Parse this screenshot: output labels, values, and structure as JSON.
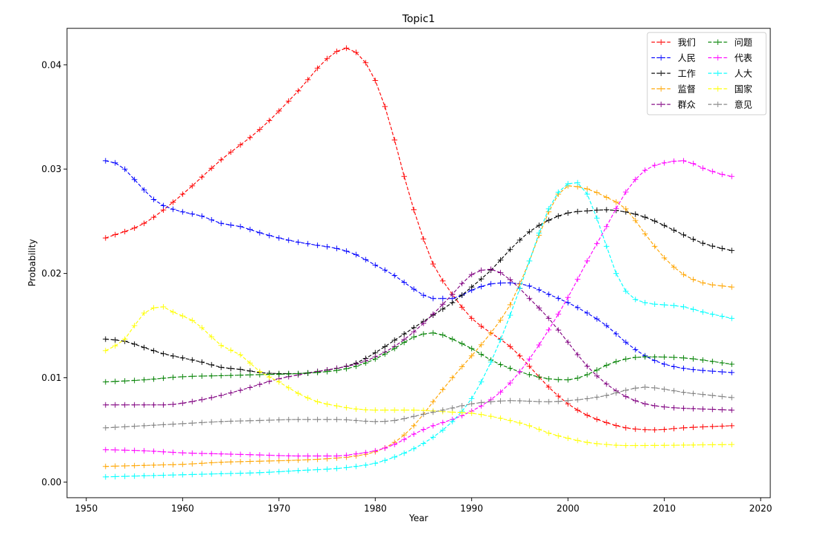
{
  "chart_data": {
    "type": "line",
    "title": "Topic1",
    "xlabel": "Year",
    "ylabel": "Probability",
    "xlim": [
      1948,
      2021
    ],
    "ylim": [
      -0.0015,
      0.0435
    ],
    "xticks": [
      1950,
      1960,
      1970,
      1980,
      1990,
      2000,
      2010,
      2020
    ],
    "yticks": [
      0.0,
      0.01,
      0.02,
      0.03,
      0.04
    ],
    "ytick_labels": [
      "0.00",
      "0.01",
      "0.02",
      "0.03",
      "0.04"
    ],
    "grid": false,
    "legend_position": "top-right",
    "legend_columns": 2,
    "line_style": "dashed",
    "marker": "+",
    "x_start": 1952,
    "x_end": 2017,
    "series": [
      {
        "name": "我们",
        "color": "#ff0000",
        "points": [
          [
            1952,
            0.0234
          ],
          [
            1956,
            0.0248
          ],
          [
            1960,
            0.0276
          ],
          [
            1964,
            0.0309
          ],
          [
            1968,
            0.0338
          ],
          [
            1972,
            0.0375
          ],
          [
            1975,
            0.0406
          ],
          [
            1977,
            0.0416
          ],
          [
            1979,
            0.0402
          ],
          [
            1980,
            0.0385
          ],
          [
            1981,
            0.036
          ],
          [
            1982,
            0.0328
          ],
          [
            1983,
            0.0293
          ],
          [
            1984,
            0.0261
          ],
          [
            1985,
            0.0233
          ],
          [
            1986,
            0.0209
          ],
          [
            1988,
            0.018
          ],
          [
            1990,
            0.0157
          ],
          [
            1992,
            0.0143
          ],
          [
            1994,
            0.013
          ],
          [
            1996,
            0.0111
          ],
          [
            1998,
            0.0091
          ],
          [
            2000,
            0.0075
          ],
          [
            2002,
            0.0064
          ],
          [
            2004,
            0.0057
          ],
          [
            2006,
            0.0052
          ],
          [
            2009,
            0.005
          ],
          [
            2012,
            0.0052
          ],
          [
            2017,
            0.0054
          ]
        ]
      },
      {
        "name": "人民",
        "color": "#0000ff",
        "points": [
          [
            1952,
            0.0308
          ],
          [
            1953,
            0.0306
          ],
          [
            1954,
            0.03
          ],
          [
            1955,
            0.029
          ],
          [
            1956,
            0.028
          ],
          [
            1957,
            0.0271
          ],
          [
            1958,
            0.0265
          ],
          [
            1960,
            0.0259
          ],
          [
            1962,
            0.0255
          ],
          [
            1964,
            0.0248
          ],
          [
            1966,
            0.0245
          ],
          [
            1968,
            0.0239
          ],
          [
            1970,
            0.0234
          ],
          [
            1972,
            0.023
          ],
          [
            1974,
            0.0227
          ],
          [
            1976,
            0.0224
          ],
          [
            1978,
            0.0218
          ],
          [
            1980,
            0.0208
          ],
          [
            1982,
            0.0198
          ],
          [
            1984,
            0.0185
          ],
          [
            1986,
            0.0176
          ],
          [
            1988,
            0.0176
          ],
          [
            1990,
            0.0184
          ],
          [
            1992,
            0.019
          ],
          [
            1994,
            0.0191
          ],
          [
            1996,
            0.0188
          ],
          [
            1998,
            0.018
          ],
          [
            2000,
            0.0172
          ],
          [
            2002,
            0.0162
          ],
          [
            2004,
            0.015
          ],
          [
            2006,
            0.0134
          ],
          [
            2008,
            0.0121
          ],
          [
            2010,
            0.0113
          ],
          [
            2012,
            0.0109
          ],
          [
            2014,
            0.0107
          ],
          [
            2017,
            0.0105
          ]
        ]
      },
      {
        "name": "工作",
        "color": "#000000",
        "points": [
          [
            1952,
            0.0137
          ],
          [
            1954,
            0.0135
          ],
          [
            1956,
            0.0129
          ],
          [
            1958,
            0.0123
          ],
          [
            1960,
            0.0119
          ],
          [
            1962,
            0.0115
          ],
          [
            1964,
            0.011
          ],
          [
            1966,
            0.0108
          ],
          [
            1968,
            0.0105
          ],
          [
            1970,
            0.0104
          ],
          [
            1972,
            0.0104
          ],
          [
            1974,
            0.0106
          ],
          [
            1976,
            0.0109
          ],
          [
            1978,
            0.0114
          ],
          [
            1980,
            0.0124
          ],
          [
            1982,
            0.0136
          ],
          [
            1984,
            0.0148
          ],
          [
            1986,
            0.016
          ],
          [
            1988,
            0.0172
          ],
          [
            1990,
            0.0187
          ],
          [
            1992,
            0.0203
          ],
          [
            1994,
            0.0223
          ],
          [
            1996,
            0.024
          ],
          [
            1998,
            0.0251
          ],
          [
            2000,
            0.0258
          ],
          [
            2002,
            0.026
          ],
          [
            2004,
            0.0261
          ],
          [
            2006,
            0.0259
          ],
          [
            2008,
            0.0254
          ],
          [
            2010,
            0.0246
          ],
          [
            2012,
            0.0237
          ],
          [
            2014,
            0.0229
          ],
          [
            2016,
            0.0224
          ],
          [
            2017,
            0.0222
          ]
        ]
      },
      {
        "name": "监督",
        "color": "#ffa500",
        "points": [
          [
            1952,
            0.0015
          ],
          [
            1956,
            0.0016
          ],
          [
            1960,
            0.0017
          ],
          [
            1964,
            0.0019
          ],
          [
            1968,
            0.002
          ],
          [
            1972,
            0.0021
          ],
          [
            1976,
            0.0023
          ],
          [
            1978,
            0.0025
          ],
          [
            1980,
            0.0029
          ],
          [
            1982,
            0.0038
          ],
          [
            1984,
            0.0054
          ],
          [
            1986,
            0.0077
          ],
          [
            1988,
            0.01
          ],
          [
            1990,
            0.0121
          ],
          [
            1992,
            0.0143
          ],
          [
            1994,
            0.017
          ],
          [
            1996,
            0.0212
          ],
          [
            1998,
            0.0259
          ],
          [
            2000,
            0.0284
          ],
          [
            2002,
            0.0281
          ],
          [
            2004,
            0.0273
          ],
          [
            2006,
            0.0262
          ],
          [
            2008,
            0.0238
          ],
          [
            2010,
            0.0215
          ],
          [
            2012,
            0.0199
          ],
          [
            2014,
            0.0191
          ],
          [
            2017,
            0.0187
          ]
        ]
      },
      {
        "name": "群众",
        "color": "#800080",
        "points": [
          [
            1952,
            0.0074
          ],
          [
            1956,
            0.0074
          ],
          [
            1958,
            0.0074
          ],
          [
            1962,
            0.0079
          ],
          [
            1966,
            0.0088
          ],
          [
            1970,
            0.0099
          ],
          [
            1974,
            0.0106
          ],
          [
            1978,
            0.0113
          ],
          [
            1980,
            0.012
          ],
          [
            1982,
            0.013
          ],
          [
            1984,
            0.0144
          ],
          [
            1986,
            0.0161
          ],
          [
            1988,
            0.018
          ],
          [
            1990,
            0.0199
          ],
          [
            1992,
            0.0204
          ],
          [
            1994,
            0.0194
          ],
          [
            1996,
            0.0176
          ],
          [
            1998,
            0.0157
          ],
          [
            2000,
            0.0134
          ],
          [
            2002,
            0.0111
          ],
          [
            2004,
            0.0094
          ],
          [
            2006,
            0.0082
          ],
          [
            2008,
            0.0075
          ],
          [
            2010,
            0.0072
          ],
          [
            2014,
            0.007
          ],
          [
            2017,
            0.0069
          ]
        ]
      },
      {
        "name": "问题",
        "color": "#008000",
        "points": [
          [
            1952,
            0.0096
          ],
          [
            1956,
            0.0098
          ],
          [
            1960,
            0.0101
          ],
          [
            1964,
            0.0102
          ],
          [
            1968,
            0.0103
          ],
          [
            1972,
            0.0104
          ],
          [
            1976,
            0.0107
          ],
          [
            1978,
            0.0111
          ],
          [
            1980,
            0.0118
          ],
          [
            1982,
            0.0128
          ],
          [
            1984,
            0.0139
          ],
          [
            1986,
            0.0143
          ],
          [
            1987,
            0.0141
          ],
          [
            1988,
            0.0137
          ],
          [
            1990,
            0.0128
          ],
          [
            1992,
            0.0117
          ],
          [
            1994,
            0.0109
          ],
          [
            1996,
            0.0103
          ],
          [
            1998,
            0.0099
          ],
          [
            2000,
            0.0098
          ],
          [
            2002,
            0.0103
          ],
          [
            2004,
            0.0112
          ],
          [
            2006,
            0.0118
          ],
          [
            2008,
            0.012
          ],
          [
            2012,
            0.0119
          ],
          [
            2017,
            0.0113
          ]
        ]
      },
      {
        "name": "代表",
        "color": "#ff00ff",
        "points": [
          [
            1952,
            0.0031
          ],
          [
            1956,
            0.003
          ],
          [
            1960,
            0.0028
          ],
          [
            1964,
            0.0027
          ],
          [
            1968,
            0.0026
          ],
          [
            1972,
            0.0025
          ],
          [
            1976,
            0.0025
          ],
          [
            1978,
            0.0027
          ],
          [
            1980,
            0.003
          ],
          [
            1982,
            0.0036
          ],
          [
            1984,
            0.0046
          ],
          [
            1986,
            0.0054
          ],
          [
            1988,
            0.006
          ],
          [
            1990,
            0.0068
          ],
          [
            1992,
            0.0079
          ],
          [
            1994,
            0.0095
          ],
          [
            1996,
            0.0118
          ],
          [
            1998,
            0.0146
          ],
          [
            2000,
            0.0177
          ],
          [
            2002,
            0.0212
          ],
          [
            2004,
            0.0245
          ],
          [
            2006,
            0.0278
          ],
          [
            2008,
            0.0299
          ],
          [
            2010,
            0.0306
          ],
          [
            2012,
            0.0308
          ],
          [
            2014,
            0.0301
          ],
          [
            2016,
            0.0295
          ],
          [
            2017,
            0.0293
          ]
        ]
      },
      {
        "name": "人大",
        "color": "#00ffff",
        "points": [
          [
            1952,
            0.0005
          ],
          [
            1956,
            0.0006
          ],
          [
            1960,
            0.0007
          ],
          [
            1964,
            0.0008
          ],
          [
            1968,
            0.0009
          ],
          [
            1972,
            0.0011
          ],
          [
            1976,
            0.0013
          ],
          [
            1978,
            0.0015
          ],
          [
            1980,
            0.0018
          ],
          [
            1982,
            0.0024
          ],
          [
            1984,
            0.0032
          ],
          [
            1986,
            0.0043
          ],
          [
            1988,
            0.0058
          ],
          [
            1990,
            0.008
          ],
          [
            1992,
            0.0115
          ],
          [
            1994,
            0.016
          ],
          [
            1996,
            0.0212
          ],
          [
            1998,
            0.0262
          ],
          [
            2000,
            0.0286
          ],
          [
            2001,
            0.0287
          ],
          [
            2002,
            0.0276
          ],
          [
            2003,
            0.0253
          ],
          [
            2004,
            0.0226
          ],
          [
            2005,
            0.02
          ],
          [
            2006,
            0.0183
          ],
          [
            2007,
            0.0175
          ],
          [
            2008,
            0.0172
          ],
          [
            2012,
            0.0168
          ],
          [
            2014,
            0.0163
          ],
          [
            2017,
            0.0157
          ]
        ]
      },
      {
        "name": "国家",
        "color": "#ffff00",
        "points": [
          [
            1952,
            0.0126
          ],
          [
            1954,
            0.0137
          ],
          [
            1955,
            0.015
          ],
          [
            1956,
            0.0162
          ],
          [
            1957,
            0.0167
          ],
          [
            1958,
            0.0168
          ],
          [
            1959,
            0.0163
          ],
          [
            1961,
            0.0155
          ],
          [
            1962,
            0.0148
          ],
          [
            1964,
            0.0131
          ],
          [
            1966,
            0.0122
          ],
          [
            1968,
            0.0106
          ],
          [
            1970,
            0.0096
          ],
          [
            1972,
            0.0085
          ],
          [
            1974,
            0.0077
          ],
          [
            1976,
            0.0073
          ],
          [
            1978,
            0.007
          ],
          [
            1980,
            0.0069
          ],
          [
            1984,
            0.0069
          ],
          [
            1988,
            0.0067
          ],
          [
            1990,
            0.0066
          ],
          [
            1992,
            0.0063
          ],
          [
            1994,
            0.0059
          ],
          [
            1996,
            0.0054
          ],
          [
            1998,
            0.0047
          ],
          [
            2000,
            0.0042
          ],
          [
            2002,
            0.0038
          ],
          [
            2004,
            0.0036
          ],
          [
            2006,
            0.0035
          ],
          [
            2017,
            0.0036
          ]
        ]
      },
      {
        "name": "意见",
        "color": "#808080",
        "points": [
          [
            1952,
            0.0052
          ],
          [
            1956,
            0.0054
          ],
          [
            1960,
            0.0056
          ],
          [
            1964,
            0.0058
          ],
          [
            1968,
            0.0059
          ],
          [
            1972,
            0.006
          ],
          [
            1976,
            0.006
          ],
          [
            1980,
            0.0058
          ],
          [
            1982,
            0.0059
          ],
          [
            1984,
            0.0063
          ],
          [
            1986,
            0.0067
          ],
          [
            1988,
            0.0071
          ],
          [
            1990,
            0.0075
          ],
          [
            1992,
            0.0077
          ],
          [
            1994,
            0.0078
          ],
          [
            1998,
            0.0077
          ],
          [
            2000,
            0.0078
          ],
          [
            2002,
            0.008
          ],
          [
            2004,
            0.0083
          ],
          [
            2006,
            0.0088
          ],
          [
            2008,
            0.0091
          ],
          [
            2010,
            0.0089
          ],
          [
            2012,
            0.0086
          ],
          [
            2014,
            0.0084
          ],
          [
            2017,
            0.0081
          ]
        ]
      }
    ]
  }
}
